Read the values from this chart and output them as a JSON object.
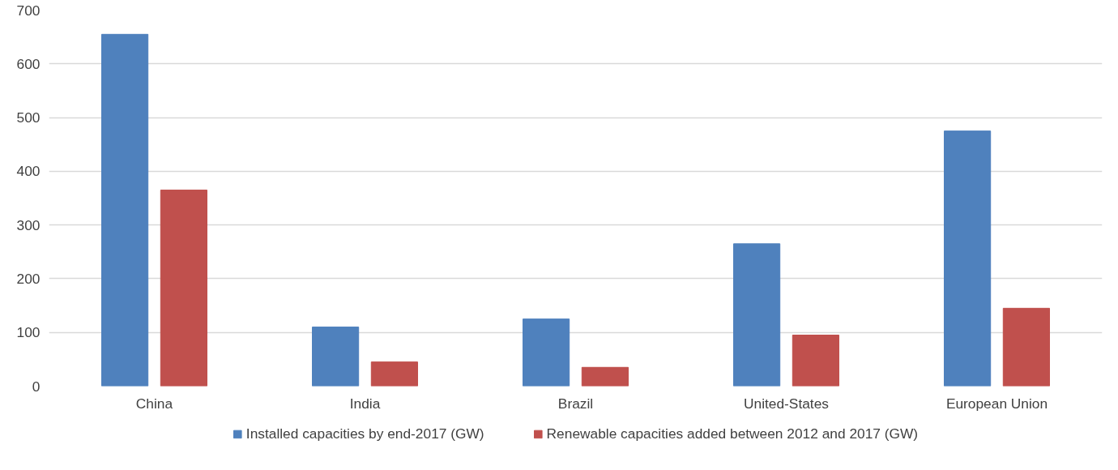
{
  "chart_data": {
    "type": "bar",
    "categories": [
      "China",
      "India",
      "Brazil",
      "United-States",
      "European Union"
    ],
    "series": [
      {
        "name": "Installed capacities by end-2017 (GW)",
        "color": "#4f81bd",
        "values": [
          655,
          110,
          125,
          265,
          475
        ]
      },
      {
        "name": "Renewable capacities added between 2012 and 2017 (GW)",
        "color": "#c0504d",
        "values": [
          365,
          45,
          35,
          95,
          145
        ]
      }
    ],
    "ylim": [
      0,
      700
    ],
    "yticks": [
      0,
      100,
      200,
      300,
      400,
      500,
      600,
      700
    ],
    "grid": "y",
    "legend": "bottom"
  }
}
